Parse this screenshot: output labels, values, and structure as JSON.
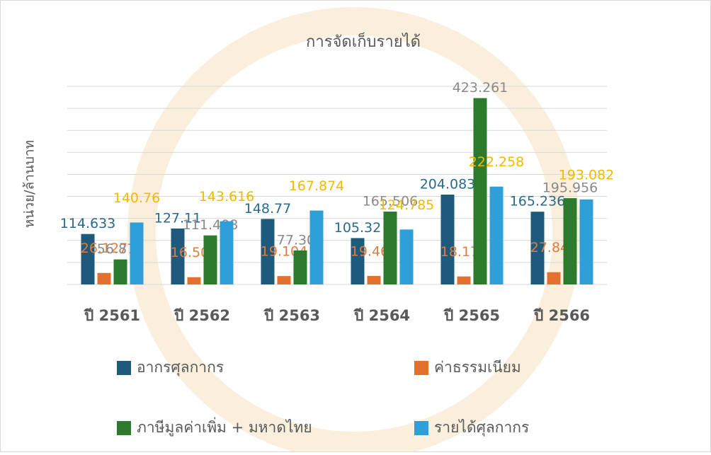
{
  "chart_data": {
    "type": "bar",
    "title": "การจัดเก็บรายได้",
    "y_label": "หน่วย/ล้านบาท",
    "categories": [
      "ปี 2561",
      "ปี 2562",
      "ปี 2563",
      "ปี 2564",
      "ปี 2565",
      "ปี 2566"
    ],
    "series": [
      {
        "name": "อากรศุลกากร",
        "color": "#1e5a7c",
        "label_color": "#2a6a8e",
        "values": [
          114.633,
          127.11,
          148.77,
          105.32,
          204.083,
          165.236
        ]
      },
      {
        "name": "ค่าธรรมเนียม",
        "color": "#e2702e",
        "label_color": "#e57b3a",
        "values": [
          26.127,
          16.506,
          19.104,
          19.465,
          18.175,
          27.846
        ]
      },
      {
        "name": "ภาษีมูลค่าเพิ่ม + มหาดไทย",
        "color": "#2b7a2e",
        "label_color": "#8a8a8a",
        "values": [
          56.872,
          111.408,
          77.308,
          165.506,
          423.261,
          195.956
        ]
      },
      {
        "name": "รายได้ศุลกากร",
        "color": "#2f9fd8",
        "label_color": "#f2b900",
        "values": [
          140.76,
          143.616,
          167.874,
          124.785,
          222.258,
          193.082
        ]
      }
    ],
    "ylim": [
      0,
      450
    ],
    "yticks": [
      0,
      50,
      100,
      150,
      200,
      250,
      300,
      350,
      400,
      450
    ],
    "grid": true
  }
}
